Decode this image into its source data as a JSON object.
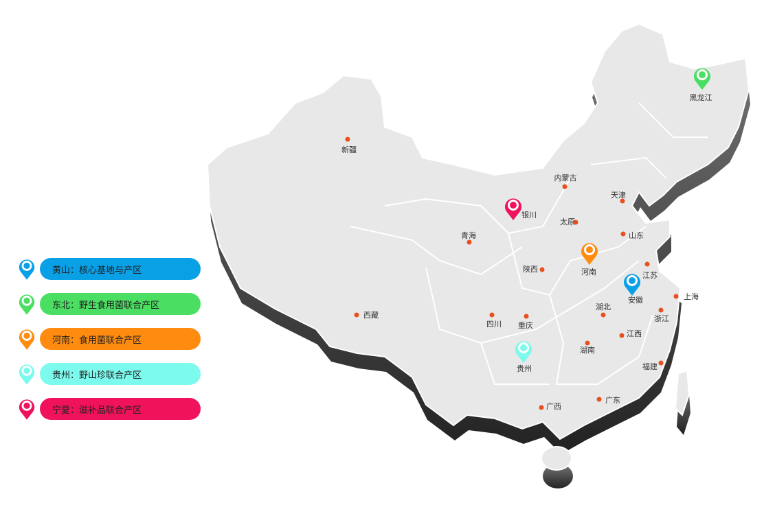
{
  "legend": [
    {
      "region": "黄山",
      "label": "黄山：核心基地与产区",
      "color": "#0aa0e6"
    },
    {
      "region": "东北",
      "label": "东北：野生食用菌联合产区",
      "color": "#4ade62"
    },
    {
      "region": "河南",
      "label": "河南：食用菌联合产区",
      "color": "#ff8c10"
    },
    {
      "region": "贵州",
      "label": "贵州：野山珍联合产区",
      "color": "#7cfaee"
    },
    {
      "region": "宁夏",
      "label": "宁夏：滋补品联合产区",
      "color": "#f0125a"
    }
  ],
  "places": [
    {
      "name": "新疆",
      "dot": true
    },
    {
      "name": "内蒙古",
      "dot": true
    },
    {
      "name": "天津",
      "dot": true
    },
    {
      "name": "银川",
      "dot": false
    },
    {
      "name": "太原",
      "dot": true
    },
    {
      "name": "山东",
      "dot": true
    },
    {
      "name": "青海",
      "dot": true
    },
    {
      "name": "陕西",
      "dot": true
    },
    {
      "name": "河南",
      "dot": false
    },
    {
      "name": "江苏",
      "dot": true
    },
    {
      "name": "安徽",
      "dot": false
    },
    {
      "name": "上海",
      "dot": true
    },
    {
      "name": "湖北",
      "dot": true
    },
    {
      "name": "浙江",
      "dot": true
    },
    {
      "name": "西藏",
      "dot": true
    },
    {
      "name": "四川",
      "dot": true
    },
    {
      "name": "重庆",
      "dot": true
    },
    {
      "name": "江西",
      "dot": true
    },
    {
      "name": "湖南",
      "dot": true
    },
    {
      "name": "贵州",
      "dot": false
    },
    {
      "name": "福建",
      "dot": true
    },
    {
      "name": "广西",
      "dot": true
    },
    {
      "name": "广东",
      "dot": true
    },
    {
      "name": "黑龙江",
      "dot": false
    }
  ],
  "colors": {
    "land": "#e8e8e8",
    "border": "#ffffff",
    "dot": "#e8501e",
    "shadow": "#555555"
  }
}
